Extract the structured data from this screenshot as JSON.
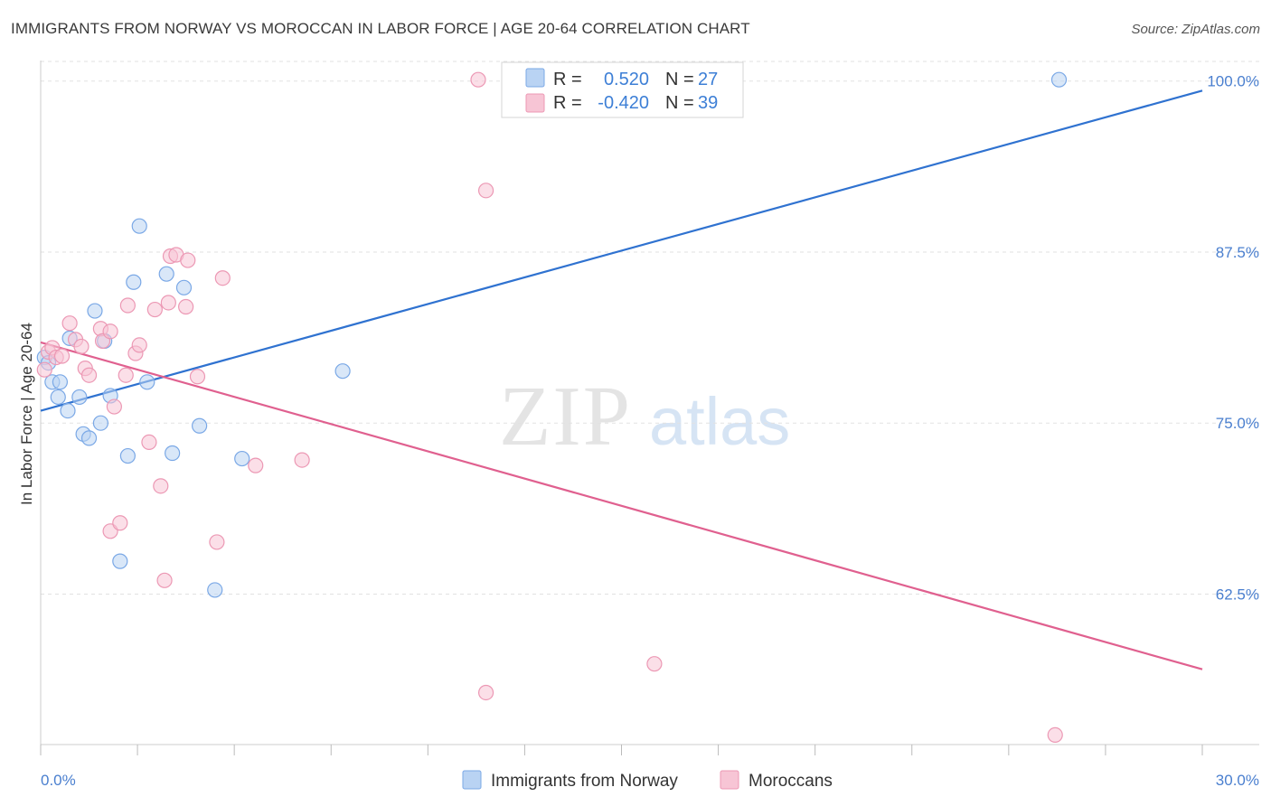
{
  "title": "IMMIGRANTS FROM NORWAY VS MOROCCAN IN LABOR FORCE | AGE 20-64 CORRELATION CHART",
  "source": "Source: ZipAtlas.com",
  "watermark": {
    "zip": "ZIP",
    "atlas": "atlas"
  },
  "colors": {
    "norway_fill": "#b9d3f3",
    "norway_stroke": "#7aa8e6",
    "norway_line": "#2f72d0",
    "moroccan_fill": "#f7c5d5",
    "moroccan_stroke": "#ec98b4",
    "moroccan_line": "#e0608f",
    "grid": "#e2e2e2",
    "tick_label": "#4a7fcf"
  },
  "legend_top": {
    "rows": [
      {
        "r_label": "R =",
        "r_value": "0.520",
        "n_label": "N =",
        "n_value": "27"
      },
      {
        "r_label": "R =",
        "r_value": "-0.420",
        "n_label": "N =",
        "n_value": "39"
      }
    ]
  },
  "legend_bottom": {
    "items": [
      "Immigrants from Norway",
      "Moroccans"
    ]
  },
  "chart_data": {
    "type": "scatter",
    "title": "IMMIGRANTS FROM NORWAY VS MOROCCAN IN LABOR FORCE | AGE 20-64 CORRELATION CHART",
    "xlabel": "",
    "ylabel": "In Labor Force | Age 20-64",
    "xlim": [
      0,
      30
    ],
    "ylim": [
      51.5,
      101.5
    ],
    "x_tick_labels": [
      "0.0%",
      "30.0%"
    ],
    "y_ticks": [
      62.5,
      75.0,
      87.5,
      100.0
    ],
    "y_tick_labels": [
      "62.5%",
      "75.0%",
      "87.5%",
      "100.0%"
    ],
    "grid": true,
    "series": [
      {
        "name": "Immigrants from Norway",
        "r": 0.52,
        "n": 27,
        "points": [
          [
            0.1,
            79.8
          ],
          [
            0.2,
            79.4
          ],
          [
            0.3,
            78.0
          ],
          [
            0.45,
            76.9
          ],
          [
            0.5,
            78.0
          ],
          [
            0.7,
            75.9
          ],
          [
            0.75,
            81.2
          ],
          [
            1.0,
            76.9
          ],
          [
            1.1,
            74.2
          ],
          [
            1.25,
            73.9
          ],
          [
            1.4,
            83.2
          ],
          [
            1.55,
            75.0
          ],
          [
            1.65,
            81.0
          ],
          [
            1.8,
            77.0
          ],
          [
            2.25,
            72.6
          ],
          [
            2.4,
            85.3
          ],
          [
            2.55,
            89.4
          ],
          [
            2.75,
            78.0
          ],
          [
            3.25,
            85.9
          ],
          [
            3.4,
            72.8
          ],
          [
            3.7,
            84.9
          ],
          [
            4.1,
            74.8
          ],
          [
            4.5,
            62.8
          ],
          [
            5.2,
            72.4
          ],
          [
            7.8,
            78.8
          ],
          [
            2.05,
            64.9
          ],
          [
            26.3,
            100.1
          ]
        ],
        "trend": {
          "x": [
            0,
            30
          ],
          "y": [
            75.9,
            99.3
          ]
        }
      },
      {
        "name": "Moroccans",
        "r": -0.42,
        "n": 39,
        "points": [
          [
            0.1,
            78.9
          ],
          [
            0.2,
            80.2
          ],
          [
            0.3,
            80.5
          ],
          [
            0.4,
            79.8
          ],
          [
            0.55,
            79.9
          ],
          [
            0.75,
            82.3
          ],
          [
            0.9,
            81.1
          ],
          [
            1.05,
            80.6
          ],
          [
            1.15,
            79.0
          ],
          [
            1.25,
            78.5
          ],
          [
            1.55,
            81.9
          ],
          [
            1.6,
            81.0
          ],
          [
            1.8,
            81.7
          ],
          [
            1.9,
            76.2
          ],
          [
            2.2,
            78.5
          ],
          [
            2.25,
            83.6
          ],
          [
            2.45,
            80.1
          ],
          [
            2.55,
            80.7
          ],
          [
            2.8,
            73.6
          ],
          [
            2.95,
            83.3
          ],
          [
            3.1,
            70.4
          ],
          [
            3.3,
            83.8
          ],
          [
            3.35,
            87.2
          ],
          [
            3.5,
            87.3
          ],
          [
            3.75,
            83.5
          ],
          [
            3.8,
            86.9
          ],
          [
            4.05,
            78.4
          ],
          [
            4.55,
            66.3
          ],
          [
            4.7,
            85.6
          ],
          [
            5.55,
            71.9
          ],
          [
            6.75,
            72.3
          ],
          [
            1.8,
            67.1
          ],
          [
            2.05,
            67.7
          ],
          [
            3.2,
            63.5
          ],
          [
            11.5,
            92.0
          ],
          [
            11.5,
            55.3
          ],
          [
            15.85,
            57.4
          ],
          [
            26.2,
            52.2
          ],
          [
            11.3,
            100.1
          ]
        ],
        "trend": {
          "x": [
            0,
            30
          ],
          "y": [
            80.9,
            57.0
          ]
        }
      }
    ]
  }
}
